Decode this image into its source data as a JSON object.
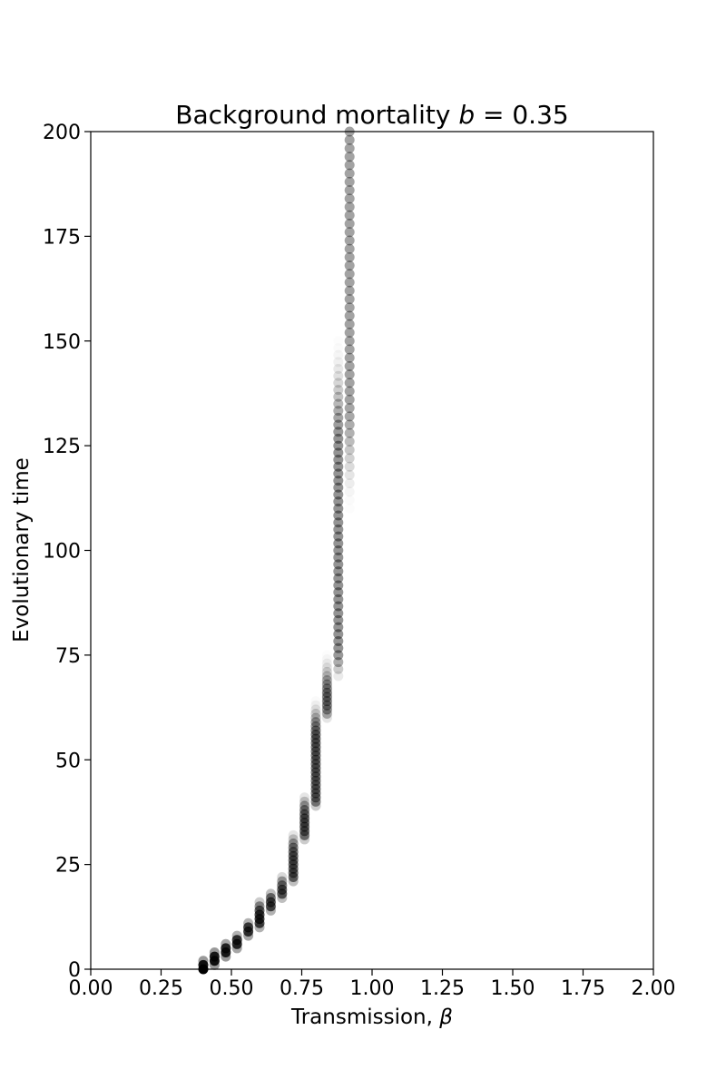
{
  "chart_data": {
    "type": "scatter",
    "title": "Background mortality",
    "title_var": "b",
    "title_value": " = 0.35",
    "xlabel": "Transmission, ",
    "xlabel_var": "β",
    "ylabel": "Evolutionary time",
    "xlim": [
      0,
      2
    ],
    "ylim": [
      0,
      200
    ],
    "xticks": [
      "0.00",
      "0.25",
      "0.50",
      "0.75",
      "1.00",
      "1.25",
      "1.50",
      "1.75",
      "2.00"
    ],
    "yticks": [
      "0",
      "25",
      "50",
      "75",
      "100",
      "125",
      "150",
      "175",
      "200"
    ],
    "grid": false,
    "marker_color": "#000000",
    "series": [
      {
        "columns": [
          {
            "x": 0.4,
            "t_start": 0,
            "t_end": 2,
            "density": [
              1.0,
              0.9,
              0.4
            ]
          },
          {
            "x": 0.44,
            "t_start": 1,
            "t_end": 4,
            "density": [
              0.4,
              0.9,
              0.85,
              0.4
            ]
          },
          {
            "x": 0.48,
            "t_start": 3,
            "t_end": 6,
            "density": [
              0.4,
              0.85,
              0.8,
              0.35
            ]
          },
          {
            "x": 0.52,
            "t_start": 5,
            "t_end": 8,
            "density": [
              0.35,
              0.8,
              0.75,
              0.3
            ]
          },
          {
            "x": 0.56,
            "t_start": 8,
            "t_end": 11,
            "density": [
              0.35,
              0.75,
              0.7,
              0.3
            ]
          },
          {
            "x": 0.6,
            "t_start": 10,
            "t_end": 16,
            "density": [
              0.3,
              0.7,
              0.75,
              0.7,
              0.6,
              0.4,
              0.2
            ]
          },
          {
            "x": 0.64,
            "t_start": 14,
            "t_end": 18,
            "density": [
              0.3,
              0.65,
              0.65,
              0.5,
              0.25
            ]
          },
          {
            "x": 0.68,
            "t_start": 17,
            "t_end": 22,
            "density": [
              0.25,
              0.6,
              0.6,
              0.5,
              0.35,
              0.15
            ]
          },
          {
            "x": 0.72,
            "t_start": 21,
            "t_end": 32,
            "density": [
              0.25,
              0.55,
              0.55,
              0.55,
              0.55,
              0.55,
              0.55,
              0.5,
              0.45,
              0.35,
              0.2,
              0.1
            ]
          },
          {
            "x": 0.76,
            "t_start": 31,
            "t_end": 41,
            "density": [
              0.2,
              0.5,
              0.55,
              0.55,
              0.55,
              0.55,
              0.5,
              0.45,
              0.35,
              0.2,
              0.1
            ]
          },
          {
            "x": 0.8,
            "t_start": 39,
            "t_end": 64,
            "density": [
              0.2,
              0.45,
              0.5,
              0.5,
              0.5,
              0.5,
              0.5,
              0.5,
              0.5,
              0.5,
              0.5,
              0.5,
              0.5,
              0.5,
              0.5,
              0.5,
              0.5,
              0.5,
              0.45,
              0.4,
              0.35,
              0.25,
              0.18,
              0.1,
              0.05,
              0.02
            ]
          },
          {
            "x": 0.84,
            "t_start": 60,
            "t_end": 75,
            "density": [
              0.1,
              0.3,
              0.4,
              0.45,
              0.45,
              0.45,
              0.45,
              0.4,
              0.35,
              0.3,
              0.22,
              0.15,
              0.1,
              0.06,
              0.03,
              0.01
            ]
          },
          {
            "x": 0.88,
            "t_start": 70,
            "t_end": 150,
            "density": [
              0.08,
              0.2,
              0.32,
              0.4,
              0.42,
              0.42,
              0.42,
              0.42,
              0.42,
              0.42,
              0.42,
              0.42,
              0.42,
              0.42,
              0.42,
              0.42,
              0.42,
              0.42,
              0.42,
              0.42,
              0.42,
              0.42,
              0.42,
              0.42,
              0.42,
              0.42,
              0.42,
              0.42,
              0.42,
              0.42,
              0.42,
              0.42,
              0.42,
              0.42,
              0.42,
              0.4,
              0.38,
              0.35,
              0.32,
              0.28,
              0.24,
              0.2,
              0.16,
              0.12,
              0.09,
              0.06,
              0.04,
              0.02,
              0.01
            ]
          },
          {
            "x": 0.92,
            "t_start": 110,
            "t_end": 200,
            "density": [
              0.01,
              0.02,
              0.04,
              0.07,
              0.1,
              0.14,
              0.18,
              0.22,
              0.26,
              0.3,
              0.32,
              0.34,
              0.35,
              0.36,
              0.36,
              0.36,
              0.36,
              0.36,
              0.36,
              0.36,
              0.36,
              0.36,
              0.36,
              0.36,
              0.36,
              0.36,
              0.36,
              0.36,
              0.36,
              0.36,
              0.36,
              0.36,
              0.36,
              0.36,
              0.36,
              0.36,
              0.36,
              0.36,
              0.36,
              0.36,
              0.36,
              0.36,
              0.36,
              0.36,
              0.36,
              0.36
            ]
          }
        ]
      }
    ]
  }
}
